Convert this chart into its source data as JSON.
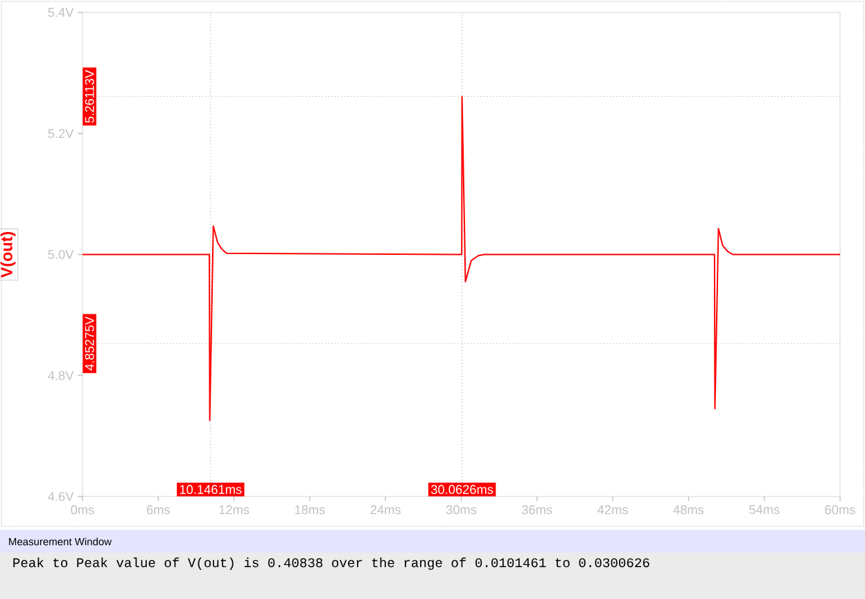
{
  "chart_data": {
    "type": "line",
    "ylabel": "V(out)",
    "x": [
      0,
      10.05,
      10.08,
      10.36,
      10.7,
      11.03,
      11.4,
      30.04,
      30.06,
      30.33,
      30.79,
      31.34,
      31.8,
      50.06,
      50.09,
      50.37,
      50.7,
      51.1,
      51.5,
      60
    ],
    "series": [
      {
        "color": "#ff0000",
        "values": [
          5.0,
          5.0,
          4.726,
          5.047,
          5.02,
          5.009,
          5.002,
          5.0,
          5.261,
          4.955,
          4.99,
          4.998,
          5.0,
          5.0,
          4.745,
          5.043,
          5.015,
          5.005,
          5.0,
          5.0
        ]
      }
    ],
    "xlim": [
      0,
      60
    ],
    "ylim": [
      4.6,
      5.4
    ],
    "xticks": [
      {
        "value": 0,
        "label": "0ms"
      },
      {
        "value": 6,
        "label": "6ms"
      },
      {
        "value": 12,
        "label": "12ms"
      },
      {
        "value": 18,
        "label": "18ms"
      },
      {
        "value": 24,
        "label": "24ms"
      },
      {
        "value": 30,
        "label": "30ms"
      },
      {
        "value": 36,
        "label": "36ms"
      },
      {
        "value": 42,
        "label": "42ms"
      },
      {
        "value": 48,
        "label": "48ms"
      },
      {
        "value": 54,
        "label": "54ms"
      },
      {
        "value": 60,
        "label": "60ms"
      }
    ],
    "yticks": [
      {
        "value": 4.6,
        "label": "4.6V"
      },
      {
        "value": 4.8,
        "label": "4.8V"
      },
      {
        "value": 5.0,
        "label": "5.0V"
      },
      {
        "value": 5.2,
        "label": "5.2V"
      },
      {
        "value": 5.4,
        "label": "5.4V"
      }
    ],
    "ref_lines": [
      {
        "axis": "x",
        "value": 10.1461,
        "label": "10.1461ms",
        "color": "#c0c0c0",
        "line_style": "dotted"
      },
      {
        "axis": "x",
        "value": 30.0626,
        "label": "30.0626ms",
        "color": "#c0c0c0",
        "line_style": "dotted"
      },
      {
        "axis": "y",
        "value": 5.26113,
        "label": "5.26113V",
        "color": "#c0c0c0",
        "line_style": "dotted"
      },
      {
        "axis": "y",
        "value": 4.85275,
        "label": "4.85275V",
        "color": "#c0c0c0",
        "line_style": "dotted"
      }
    ],
    "annotations": [
      "Measurement Window",
      "Peak to Peak value of V(out) is 0.40838 over the range of 0.0101461 to 0.0300626"
    ],
    "line_style": "solid",
    "marker": "none"
  }
}
